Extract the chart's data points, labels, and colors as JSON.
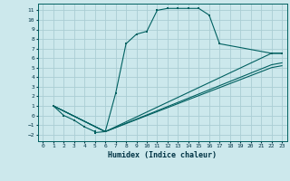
{
  "title": "",
  "xlabel": "Humidex (Indice chaleur)",
  "background_color": "#cce8ec",
  "grid_color": "#aacdd4",
  "line_color": "#006060",
  "xlim": [
    -0.5,
    23.5
  ],
  "ylim": [
    -2.7,
    11.7
  ],
  "xticks": [
    0,
    1,
    2,
    3,
    4,
    5,
    6,
    7,
    8,
    9,
    10,
    11,
    12,
    13,
    14,
    15,
    16,
    17,
    18,
    19,
    20,
    21,
    22,
    23
  ],
  "yticks": [
    -2,
    -1,
    0,
    1,
    2,
    3,
    4,
    5,
    6,
    7,
    8,
    9,
    10,
    11
  ],
  "line1_x": [
    1,
    2,
    3,
    4,
    5,
    5,
    6,
    7,
    8,
    9,
    10,
    11,
    12,
    13,
    14,
    15,
    16,
    17,
    22,
    23
  ],
  "line1_y": [
    1,
    0,
    -0.5,
    -1.2,
    -1.7,
    -1.8,
    -1.7,
    2.3,
    7.5,
    8.5,
    8.8,
    11.0,
    11.2,
    11.2,
    11.2,
    11.2,
    10.5,
    7.5,
    6.5,
    6.5
  ],
  "line2_x": [
    1,
    6,
    22,
    23
  ],
  "line2_y": [
    1,
    -1.7,
    6.5,
    6.5
  ],
  "line3_x": [
    1,
    6,
    22,
    23
  ],
  "line3_y": [
    1,
    -1.7,
    5.3,
    5.5
  ],
  "line4_x": [
    1,
    6,
    22,
    23
  ],
  "line4_y": [
    1,
    -1.7,
    5.0,
    5.2
  ]
}
